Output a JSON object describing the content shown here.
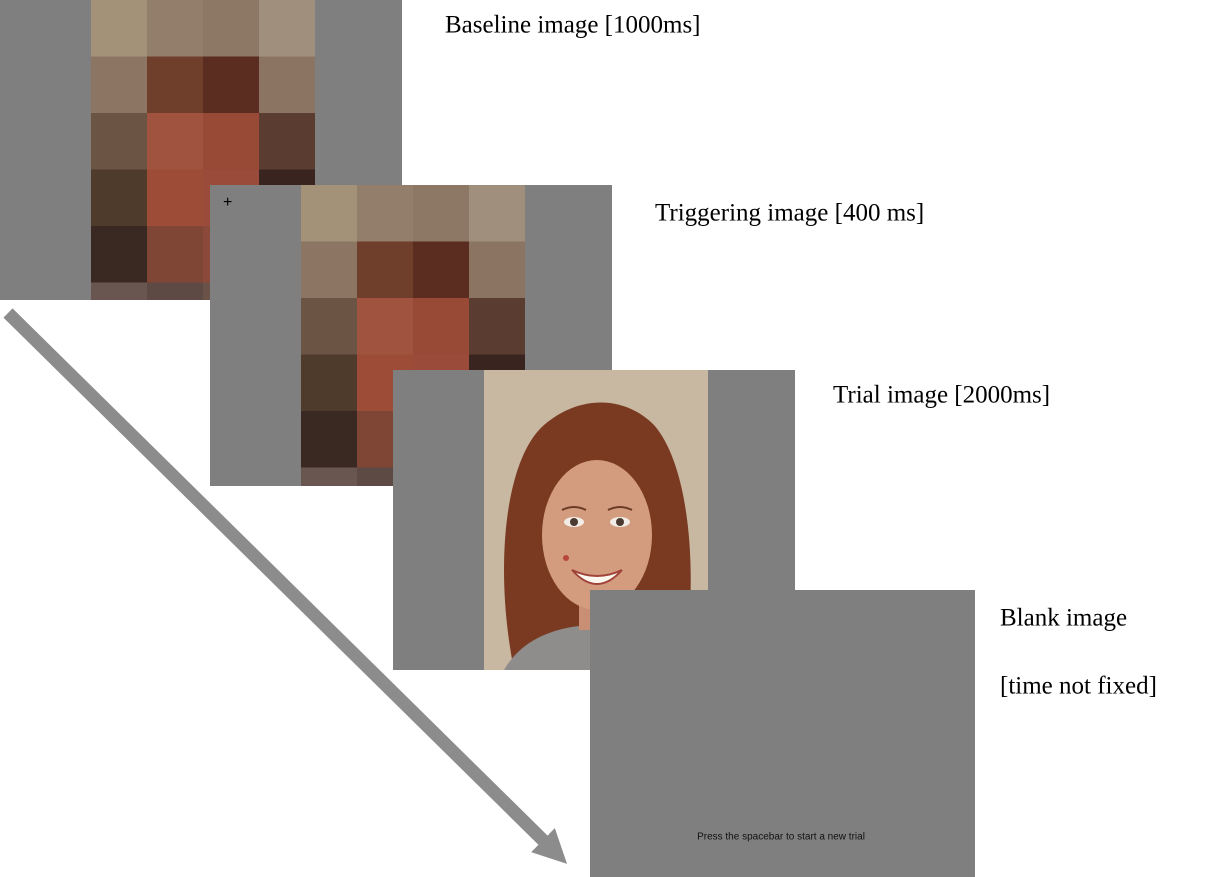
{
  "stages": [
    {
      "label": "Baseline image [1000ms]"
    },
    {
      "label": "Triggering image [400 ms]",
      "fixation": "+"
    },
    {
      "label": "Trial image [2000ms]"
    },
    {
      "label_lines": [
        "Blank image",
        "[time not fixed]"
      ],
      "instruction": "Press the spacebar to start a new trial"
    }
  ]
}
